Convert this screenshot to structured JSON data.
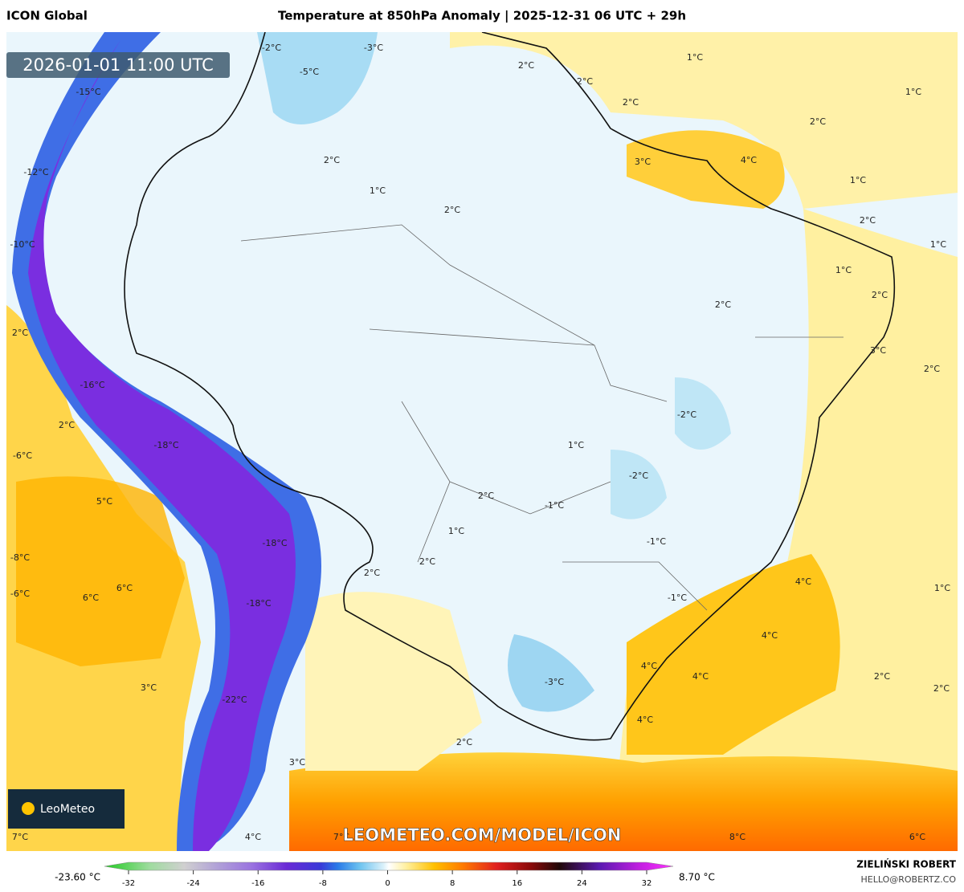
{
  "header": {
    "model": "ICON Global",
    "title": "Temperature at 850hPa Anomaly | 2025-12-31 06 UTC + 29h"
  },
  "timestamp": "2026-01-01 11:00 UTC",
  "map_labels": [
    "-2°C",
    "-3°C",
    "-5°C",
    "-15°C",
    "-12°C",
    "-10°C",
    "2°C",
    "-16°C",
    "2°C",
    "-18°C",
    "-6°C",
    "5°C",
    "-8°C",
    "-18°C",
    "-6°C",
    "6°C",
    "6°C",
    "-18°C",
    "3°C",
    "-22°C",
    "3°C",
    "7°C",
    "4°C",
    "7°C",
    "2°C",
    "1°C",
    "2°C",
    "2°C",
    "1°C",
    "2°C",
    "2°C",
    "3°C",
    "4°C",
    "1°C",
    "2°C",
    "1°C",
    "2°C",
    "1°C",
    "1°C",
    "2°C",
    "2°C",
    "3°C",
    "2°C",
    "-2°C",
    "1°C",
    "-2°C",
    "2°C",
    "-1°C",
    "1°C",
    "-1°C",
    "2°C",
    "2°C",
    "4°C",
    "1°C",
    "-1°C",
    "4°C",
    "4°C",
    "4°C",
    "2°C",
    "2°C",
    "-3°C",
    "4°C",
    "2°C",
    "8°C",
    "6°C"
  ],
  "logo": "LeoMeteo",
  "watermark": "LEOMETEO.COM/MODEL/ICON",
  "colorbar": {
    "min_label": "-23.60 °C",
    "max_label": "8.70 °C",
    "ticks": [
      -32,
      -24,
      -16,
      -8,
      0,
      8,
      16,
      24,
      32
    ]
  },
  "credits": {
    "author": "ZIELIŃSKI ROBERT",
    "email": "HELLO@ROBERTZ.CO"
  }
}
